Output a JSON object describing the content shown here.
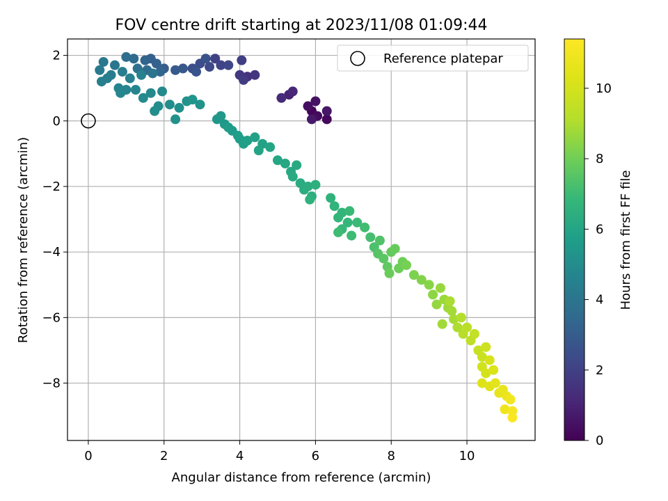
{
  "chart_data": {
    "type": "scatter",
    "title": "FOV centre drift starting at 2023/11/08 01:09:44",
    "xlabel": "Angular distance from reference (arcmin)",
    "ylabel": "Rotation from reference (arcmin)",
    "xlim": [
      -0.55,
      11.8
    ],
    "ylim": [
      -9.75,
      2.5
    ],
    "xticks": [
      0,
      2,
      4,
      6,
      8,
      10
    ],
    "yticks": [
      2,
      0,
      -2,
      -4,
      -6,
      -8
    ],
    "xtick_labels": [
      "0",
      "2",
      "4",
      "6",
      "8",
      "10"
    ],
    "ytick_labels": [
      "2",
      "0",
      "−2",
      "−4",
      "−6",
      "−8"
    ],
    "grid": true,
    "legend": {
      "position": "top-right",
      "entries": [
        "Reference platepar"
      ]
    },
    "reference_point": {
      "x": 0,
      "y": 0
    },
    "colorbar": {
      "label": "Hours from first FF file",
      "range": [
        0,
        11.4
      ],
      "ticks": [
        0,
        2,
        4,
        6,
        8,
        10
      ],
      "tick_labels": [
        "0",
        "2",
        "4",
        "6",
        "8",
        "10"
      ],
      "colormap": "viridis"
    },
    "series": [
      {
        "color_by": "hours",
        "points": [
          {
            "x": 5.9,
            "y": 0.3,
            "hours": 0.1
          },
          {
            "x": 6.3,
            "y": 0.05,
            "hours": 0.2
          },
          {
            "x": 6.05,
            "y": 0.15,
            "hours": 0.3
          },
          {
            "x": 5.8,
            "y": 0.45,
            "hours": 0.4
          },
          {
            "x": 6.0,
            "y": 0.6,
            "hours": 0.5
          },
          {
            "x": 6.3,
            "y": 0.3,
            "hours": 0.6
          },
          {
            "x": 5.9,
            "y": 0.05,
            "hours": 0.7
          },
          {
            "x": 5.3,
            "y": 0.8,
            "hours": 1.0
          },
          {
            "x": 5.4,
            "y": 0.9,
            "hours": 1.1
          },
          {
            "x": 5.1,
            "y": 0.7,
            "hours": 1.2
          },
          {
            "x": 4.2,
            "y": 1.35,
            "hours": 1.5
          },
          {
            "x": 4.4,
            "y": 1.4,
            "hours": 1.6
          },
          {
            "x": 4.0,
            "y": 1.4,
            "hours": 1.7
          },
          {
            "x": 4.1,
            "y": 1.25,
            "hours": 1.8
          },
          {
            "x": 4.05,
            "y": 1.85,
            "hours": 1.9
          },
          {
            "x": 3.35,
            "y": 1.9,
            "hours": 2.0
          },
          {
            "x": 3.5,
            "y": 1.7,
            "hours": 2.1
          },
          {
            "x": 3.7,
            "y": 1.7,
            "hours": 2.2
          },
          {
            "x": 3.2,
            "y": 1.65,
            "hours": 2.3
          },
          {
            "x": 2.95,
            "y": 1.75,
            "hours": 2.4
          },
          {
            "x": 2.75,
            "y": 1.6,
            "hours": 2.5
          },
          {
            "x": 3.1,
            "y": 1.9,
            "hours": 2.6
          },
          {
            "x": 2.85,
            "y": 1.5,
            "hours": 2.7
          },
          {
            "x": 2.5,
            "y": 1.6,
            "hours": 2.8
          },
          {
            "x": 2.3,
            "y": 1.55,
            "hours": 2.9
          },
          {
            "x": 2.0,
            "y": 1.6,
            "hours": 3.0
          },
          {
            "x": 1.65,
            "y": 1.9,
            "hours": 3.1
          },
          {
            "x": 1.8,
            "y": 1.75,
            "hours": 3.2
          },
          {
            "x": 1.5,
            "y": 1.85,
            "hours": 3.3
          },
          {
            "x": 1.9,
            "y": 1.5,
            "hours": 3.4
          },
          {
            "x": 1.2,
            "y": 1.9,
            "hours": 3.5
          },
          {
            "x": 1.55,
            "y": 1.55,
            "hours": 3.6
          },
          {
            "x": 1.0,
            "y": 1.95,
            "hours": 3.7
          },
          {
            "x": 1.3,
            "y": 1.6,
            "hours": 3.8
          },
          {
            "x": 1.7,
            "y": 1.45,
            "hours": 3.9
          },
          {
            "x": 0.7,
            "y": 1.7,
            "hours": 4.0
          },
          {
            "x": 0.4,
            "y": 1.8,
            "hours": 4.1
          },
          {
            "x": 0.3,
            "y": 1.55,
            "hours": 4.2
          },
          {
            "x": 0.6,
            "y": 1.4,
            "hours": 4.3
          },
          {
            "x": 0.9,
            "y": 1.5,
            "hours": 4.35
          },
          {
            "x": 0.5,
            "y": 1.3,
            "hours": 4.4
          },
          {
            "x": 0.35,
            "y": 1.2,
            "hours": 4.45
          },
          {
            "x": 1.1,
            "y": 1.3,
            "hours": 4.5
          },
          {
            "x": 1.4,
            "y": 1.4,
            "hours": 4.55
          },
          {
            "x": 0.8,
            "y": 1.0,
            "hours": 4.6
          },
          {
            "x": 1.0,
            "y": 0.95,
            "hours": 4.65
          },
          {
            "x": 1.25,
            "y": 0.95,
            "hours": 4.7
          },
          {
            "x": 0.85,
            "y": 0.85,
            "hours": 4.75
          },
          {
            "x": 1.65,
            "y": 0.85,
            "hours": 4.8
          },
          {
            "x": 1.95,
            "y": 0.9,
            "hours": 4.85
          },
          {
            "x": 1.45,
            "y": 0.7,
            "hours": 4.9
          },
          {
            "x": 1.85,
            "y": 0.45,
            "hours": 4.95
          },
          {
            "x": 2.15,
            "y": 0.5,
            "hours": 5.0
          },
          {
            "x": 1.75,
            "y": 0.3,
            "hours": 5.05
          },
          {
            "x": 2.4,
            "y": 0.4,
            "hours": 5.1
          },
          {
            "x": 2.6,
            "y": 0.6,
            "hours": 5.15
          },
          {
            "x": 2.3,
            "y": 0.05,
            "hours": 5.2
          },
          {
            "x": 2.95,
            "y": 0.5,
            "hours": 5.25
          },
          {
            "x": 2.75,
            "y": 0.65,
            "hours": 5.3
          },
          {
            "x": 3.4,
            "y": 0.05,
            "hours": 5.4
          },
          {
            "x": 3.5,
            "y": 0.15,
            "hours": 5.45
          },
          {
            "x": 3.6,
            "y": -0.1,
            "hours": 5.5
          },
          {
            "x": 3.8,
            "y": -0.3,
            "hours": 5.55
          },
          {
            "x": 3.7,
            "y": -0.2,
            "hours": 5.6
          },
          {
            "x": 4.0,
            "y": -0.55,
            "hours": 5.65
          },
          {
            "x": 3.95,
            "y": -0.45,
            "hours": 5.7
          },
          {
            "x": 4.1,
            "y": -0.7,
            "hours": 5.75
          },
          {
            "x": 4.2,
            "y": -0.6,
            "hours": 5.8
          },
          {
            "x": 4.4,
            "y": -0.5,
            "hours": 5.85
          },
          {
            "x": 4.6,
            "y": -0.7,
            "hours": 5.9
          },
          {
            "x": 4.5,
            "y": -0.9,
            "hours": 5.95
          },
          {
            "x": 4.8,
            "y": -0.8,
            "hours": 6.0
          },
          {
            "x": 5.0,
            "y": -1.2,
            "hours": 6.05
          },
          {
            "x": 5.2,
            "y": -1.3,
            "hours": 6.1
          },
          {
            "x": 5.35,
            "y": -1.55,
            "hours": 6.15
          },
          {
            "x": 5.5,
            "y": -1.35,
            "hours": 6.2
          },
          {
            "x": 5.4,
            "y": -1.7,
            "hours": 6.25
          },
          {
            "x": 5.6,
            "y": -1.9,
            "hours": 6.3
          },
          {
            "x": 5.8,
            "y": -2.0,
            "hours": 6.35
          },
          {
            "x": 5.7,
            "y": -2.1,
            "hours": 6.4
          },
          {
            "x": 5.9,
            "y": -2.3,
            "hours": 6.45
          },
          {
            "x": 6.0,
            "y": -1.95,
            "hours": 6.5
          },
          {
            "x": 5.85,
            "y": -2.4,
            "hours": 6.55
          },
          {
            "x": 6.4,
            "y": -2.35,
            "hours": 6.6
          },
          {
            "x": 6.5,
            "y": -2.6,
            "hours": 6.65
          },
          {
            "x": 6.7,
            "y": -2.8,
            "hours": 6.7
          },
          {
            "x": 6.6,
            "y": -2.95,
            "hours": 6.75
          },
          {
            "x": 6.85,
            "y": -3.1,
            "hours": 6.8
          },
          {
            "x": 6.7,
            "y": -3.3,
            "hours": 6.85
          },
          {
            "x": 6.9,
            "y": -2.75,
            "hours": 6.9
          },
          {
            "x": 7.1,
            "y": -3.1,
            "hours": 6.95
          },
          {
            "x": 6.95,
            "y": -3.5,
            "hours": 7.0
          },
          {
            "x": 6.6,
            "y": -3.4,
            "hours": 7.05
          },
          {
            "x": 7.3,
            "y": -3.25,
            "hours": 7.1
          },
          {
            "x": 7.45,
            "y": -3.55,
            "hours": 7.2
          },
          {
            "x": 7.55,
            "y": -3.85,
            "hours": 7.3
          },
          {
            "x": 7.7,
            "y": -3.65,
            "hours": 7.4
          },
          {
            "x": 7.65,
            "y": -4.05,
            "hours": 7.5
          },
          {
            "x": 7.8,
            "y": -4.2,
            "hours": 7.6
          },
          {
            "x": 7.9,
            "y": -4.45,
            "hours": 7.7
          },
          {
            "x": 8.0,
            "y": -4.0,
            "hours": 7.8
          },
          {
            "x": 8.1,
            "y": -3.9,
            "hours": 7.85
          },
          {
            "x": 7.95,
            "y": -4.65,
            "hours": 7.9
          },
          {
            "x": 8.2,
            "y": -4.5,
            "hours": 7.95
          },
          {
            "x": 8.3,
            "y": -4.3,
            "hours": 8.0
          },
          {
            "x": 8.4,
            "y": -4.4,
            "hours": 8.1
          },
          {
            "x": 8.6,
            "y": -4.7,
            "hours": 8.2
          },
          {
            "x": 8.8,
            "y": -4.85,
            "hours": 8.3
          },
          {
            "x": 9.0,
            "y": -5.0,
            "hours": 8.4
          },
          {
            "x": 9.1,
            "y": -5.3,
            "hours": 8.5
          },
          {
            "x": 9.2,
            "y": -5.6,
            "hours": 8.6
          },
          {
            "x": 9.3,
            "y": -5.1,
            "hours": 8.65
          },
          {
            "x": 9.4,
            "y": -5.45,
            "hours": 8.7
          },
          {
            "x": 9.5,
            "y": -5.7,
            "hours": 8.75
          },
          {
            "x": 9.35,
            "y": -6.2,
            "hours": 8.8
          },
          {
            "x": 9.6,
            "y": -5.8,
            "hours": 8.85
          },
          {
            "x": 9.65,
            "y": -6.05,
            "hours": 8.9
          },
          {
            "x": 9.55,
            "y": -5.5,
            "hours": 8.95
          },
          {
            "x": 9.75,
            "y": -6.3,
            "hours": 9.0
          },
          {
            "x": 9.85,
            "y": -6.0,
            "hours": 9.1
          },
          {
            "x": 9.9,
            "y": -6.5,
            "hours": 9.2
          },
          {
            "x": 10.0,
            "y": -6.3,
            "hours": 9.3
          },
          {
            "x": 10.1,
            "y": -6.7,
            "hours": 9.4
          },
          {
            "x": 10.2,
            "y": -6.5,
            "hours": 9.5
          },
          {
            "x": 10.3,
            "y": -7.0,
            "hours": 9.6
          },
          {
            "x": 10.4,
            "y": -7.2,
            "hours": 9.7
          },
          {
            "x": 10.5,
            "y": -6.9,
            "hours": 9.8
          },
          {
            "x": 10.4,
            "y": -7.5,
            "hours": 9.9
          },
          {
            "x": 10.5,
            "y": -7.7,
            "hours": 10.0
          },
          {
            "x": 10.6,
            "y": -7.3,
            "hours": 10.1
          },
          {
            "x": 10.7,
            "y": -7.6,
            "hours": 10.2
          },
          {
            "x": 10.4,
            "y": -8.0,
            "hours": 10.3
          },
          {
            "x": 10.6,
            "y": -8.1,
            "hours": 10.4
          },
          {
            "x": 10.75,
            "y": -8.0,
            "hours": 10.5
          },
          {
            "x": 10.85,
            "y": -8.3,
            "hours": 10.6
          },
          {
            "x": 10.95,
            "y": -8.2,
            "hours": 10.7
          },
          {
            "x": 11.05,
            "y": -8.4,
            "hours": 10.8
          },
          {
            "x": 11.0,
            "y": -8.8,
            "hours": 10.9
          },
          {
            "x": 11.15,
            "y": -8.5,
            "hours": 11.0
          },
          {
            "x": 11.2,
            "y": -8.85,
            "hours": 11.1
          },
          {
            "x": 11.2,
            "y": -9.05,
            "hours": 11.3
          }
        ]
      }
    ]
  }
}
